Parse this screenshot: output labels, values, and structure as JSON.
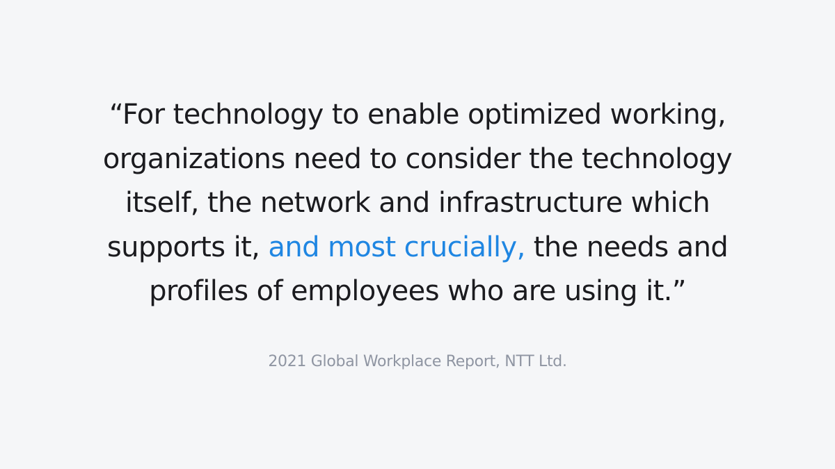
{
  "quote": {
    "line1": "“For technology to enable optimized working,",
    "line2": "organizations need to consider the technology",
    "line3": "itself, the network and infrastructure which",
    "line4_before": "supports it, ",
    "line4_highlight": "and most crucially,",
    "line4_after": " the needs and",
    "line5": "profiles of employees who are using it.”"
  },
  "attribution": "2021 Global Workplace Report, NTT Ltd.",
  "colors": {
    "background": "#f5f6f8",
    "quote_text": "#1b1b1f",
    "highlight": "#1f86e2",
    "attribution": "#8f95a2"
  }
}
